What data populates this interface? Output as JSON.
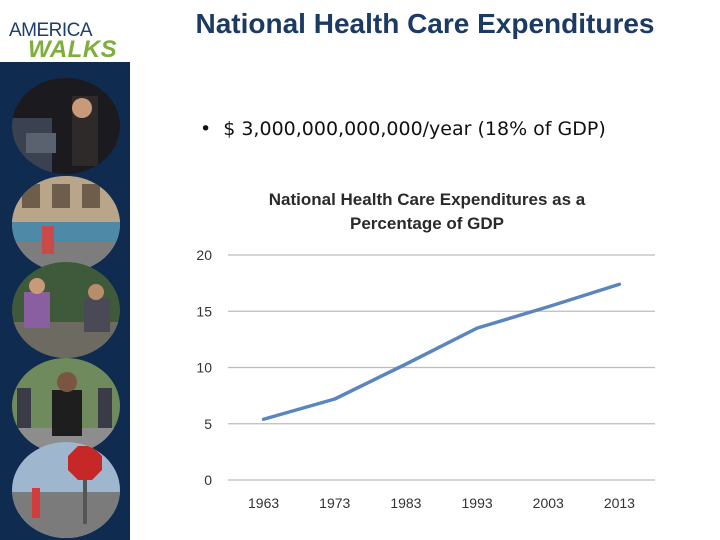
{
  "logo": {
    "line1": "AMERICA",
    "line2": "WALKS"
  },
  "slide": {
    "title": "National Health Care Expenditures",
    "bullet": "$ 3,000,000,000,000/year (18% of GDP)"
  },
  "colors": {
    "sidebar": "#0f2b4f",
    "title": "#1c3b64",
    "series": "#5b86bd",
    "grid": "#bcbcbc"
  },
  "chart_data": {
    "type": "line",
    "title_lines": [
      "National Health Care Expenditures as a",
      "Percentage of GDP"
    ],
    "xlabel": "",
    "ylabel": "",
    "x": [
      1963,
      1973,
      1983,
      1993,
      2003,
      2013
    ],
    "series": [
      {
        "values": [
          5.4,
          7.2,
          10.3,
          13.5,
          15.4,
          17.4
        ]
      }
    ],
    "ylim": [
      0,
      20
    ],
    "yticks": [
      0,
      5,
      10,
      15,
      20
    ],
    "grid": true,
    "legend": "none"
  }
}
